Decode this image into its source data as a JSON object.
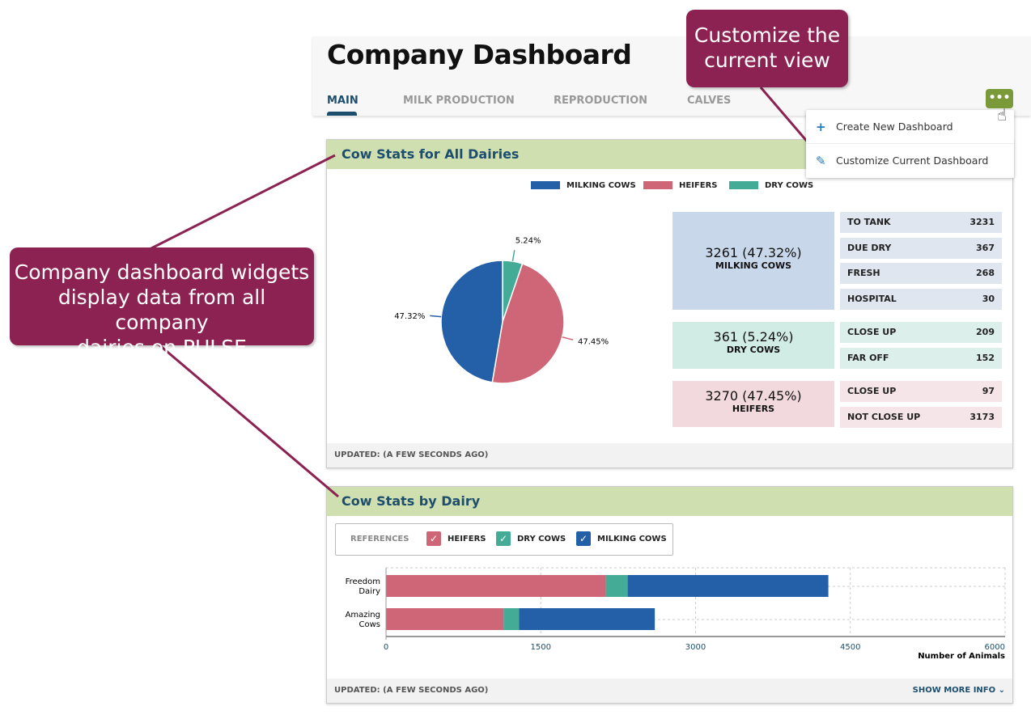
{
  "page_title": "Company Dashboard",
  "tabs": [
    {
      "label": "MAIN",
      "active": true
    },
    {
      "label": "MILK PRODUCTION"
    },
    {
      "label": "REPRODUCTION"
    },
    {
      "label": "CALVES"
    }
  ],
  "more_button": {
    "label": "•••",
    "color": "#7a9a3a"
  },
  "menu": {
    "items": [
      {
        "label": "Create New Dashboard",
        "icon": "plus-icon"
      },
      {
        "label": "Customize Current Dashboard",
        "icon": "pencil-icon"
      }
    ]
  },
  "colors": {
    "milking": "#2360a8",
    "heifers": "#cf6677",
    "dry": "#43ab96",
    "callout": "#8b2252"
  },
  "card1": {
    "title": "Cow Stats for All Dairies",
    "legend": [
      "MILKING COWS",
      "HEIFERS",
      "DRY COWS"
    ],
    "footer": "UPDATED: (A FEW SECONDS AGO)",
    "stats": {
      "milking": {
        "value": "3261 (47.32%)",
        "label": "MILKING COWS",
        "rows": [
          [
            "TO TANK",
            "3231"
          ],
          [
            "DUE DRY",
            "367"
          ],
          [
            "FRESH",
            "268"
          ],
          [
            "HOSPITAL",
            "30"
          ]
        ]
      },
      "dry": {
        "value": "361 (5.24%)",
        "label": "DRY COWS",
        "rows": [
          [
            "CLOSE UP",
            "209"
          ],
          [
            "FAR OFF",
            "152"
          ]
        ]
      },
      "heifers": {
        "value": "3270 (47.45%)",
        "label": "HEIFERS",
        "rows": [
          [
            "CLOSE UP",
            "97"
          ],
          [
            "NOT CLOSE UP",
            "3173"
          ]
        ]
      }
    }
  },
  "card2": {
    "title": "Cow Stats by Dairy",
    "references_label": "REFERENCES",
    "references": [
      "HEIFERS",
      "DRY COWS",
      "MILKING COWS"
    ],
    "footer": "UPDATED: (A FEW SECONDS AGO)",
    "show_more": "SHOW MORE INFO"
  },
  "chart_data": [
    {
      "type": "pie",
      "slices": [
        {
          "name": "DRY COWS",
          "value": 5.24,
          "label": "5.24%"
        },
        {
          "name": "HEIFERS",
          "value": 47.45,
          "label": "47.45%"
        },
        {
          "name": "MILKING COWS",
          "value": 47.32,
          "label": "47.32%"
        }
      ]
    },
    {
      "type": "bar",
      "orientation": "horizontal",
      "stacked": true,
      "categories": [
        "Freedom Dairy",
        "Amazing Cows"
      ],
      "series": [
        {
          "name": "HEIFERS",
          "values": [
            2130,
            1140
          ]
        },
        {
          "name": "DRY COWS",
          "values": [
            212,
            149
          ]
        },
        {
          "name": "MILKING COWS",
          "values": [
            1945,
            1316
          ]
        }
      ],
      "xlabel": "Number of Animals",
      "xlim": [
        0,
        6000
      ],
      "xticks": [
        "0",
        "1500",
        "3000",
        "4500",
        "6000"
      ],
      "grid": true
    }
  ],
  "callouts": {
    "top": [
      "Customize the",
      "current view"
    ],
    "left": [
      "Company dashboard widgets",
      "display data from all company",
      "dairies on PULSE"
    ]
  }
}
